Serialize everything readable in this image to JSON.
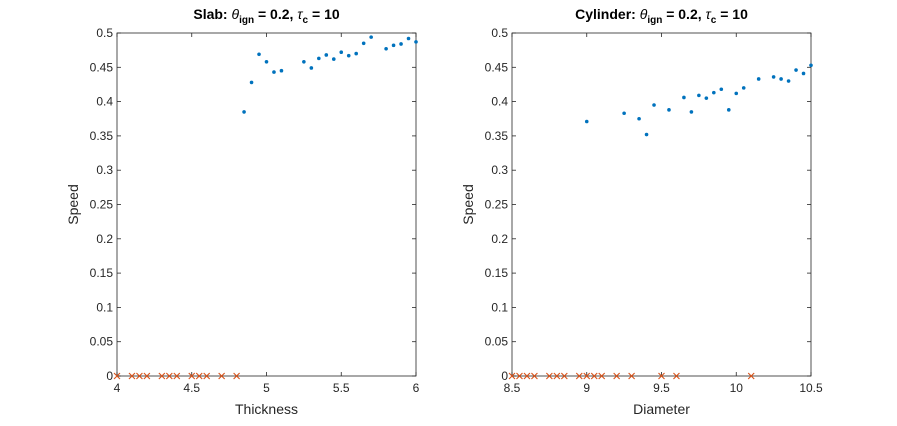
{
  "chart_data": [
    {
      "type": "scatter",
      "title": "Slab: θ_ign = 0.2, τ_c = 10",
      "title_parts": {
        "prefix": "Slab: ",
        "theta": "θ",
        "theta_sub": "ign",
        "mid": " = 0.2, ",
        "tau": "τ",
        "tau_sub": "c",
        "suffix": " = 10"
      },
      "xlabel": "Thickness",
      "ylabel": "Speed",
      "xlim": [
        4,
        6
      ],
      "ylim": [
        0,
        0.5
      ],
      "xticks": [
        "4",
        "4.5",
        "5",
        "5.5",
        "6"
      ],
      "xtick_values": [
        4,
        4.5,
        5,
        5.5,
        6
      ],
      "yticks": [
        "0",
        "0.05",
        "0.1",
        "0.15",
        "0.2",
        "0.25",
        "0.3",
        "0.35",
        "0.4",
        "0.45",
        "0.5"
      ],
      "ytick_values": [
        0,
        0.05,
        0.1,
        0.15,
        0.2,
        0.25,
        0.3,
        0.35,
        0.4,
        0.45,
        0.5
      ],
      "grid": false,
      "series": [
        {
          "marker": "dot",
          "color": "#0072BD",
          "x": [
            4.85,
            4.9,
            4.95,
            5.0,
            5.05,
            5.1,
            5.25,
            5.3,
            5.35,
            5.4,
            5.45,
            5.5,
            5.55,
            5.6,
            5.65,
            5.7,
            5.8,
            5.85,
            5.9,
            5.95,
            6.0
          ],
          "y": [
            0.385,
            0.428,
            0.469,
            0.458,
            0.443,
            0.445,
            0.458,
            0.449,
            0.463,
            0.468,
            0.462,
            0.472,
            0.467,
            0.47,
            0.485,
            0.494,
            0.477,
            0.482,
            0.484,
            0.492,
            0.487
          ]
        },
        {
          "marker": "x",
          "color": "#D95319",
          "x": [
            4.0,
            4.1,
            4.15,
            4.2,
            4.3,
            4.35,
            4.4,
            4.5,
            4.55,
            4.6,
            4.7,
            4.8
          ],
          "y": [
            0,
            0,
            0,
            0,
            0,
            0,
            0,
            0,
            0,
            0,
            0,
            0
          ]
        }
      ]
    },
    {
      "type": "scatter",
      "title": "Cylinder: θ_ign = 0.2, τ_c = 10",
      "title_parts": {
        "prefix": "Cylinder: ",
        "theta": "θ",
        "theta_sub": "ign",
        "mid": " = 0.2, ",
        "tau": "τ",
        "tau_sub": "c",
        "suffix": " = 10"
      },
      "xlabel": "Diameter",
      "ylabel": "Speed",
      "xlim": [
        8.5,
        10.5
      ],
      "ylim": [
        0,
        0.5
      ],
      "xticks": [
        "8.5",
        "9",
        "9.5",
        "10",
        "10.5"
      ],
      "xtick_values": [
        8.5,
        9,
        9.5,
        10,
        10.5
      ],
      "yticks": [
        "0",
        "0.05",
        "0.1",
        "0.15",
        "0.2",
        "0.25",
        "0.3",
        "0.35",
        "0.4",
        "0.45",
        "0.5"
      ],
      "ytick_values": [
        0,
        0.05,
        0.1,
        0.15,
        0.2,
        0.25,
        0.3,
        0.35,
        0.4,
        0.45,
        0.5
      ],
      "grid": false,
      "series": [
        {
          "marker": "dot",
          "color": "#0072BD",
          "x": [
            9.0,
            9.25,
            9.35,
            9.4,
            9.45,
            9.55,
            9.65,
            9.7,
            9.75,
            9.8,
            9.85,
            9.9,
            9.95,
            10.0,
            10.05,
            10.15,
            10.25,
            10.3,
            10.35,
            10.4,
            10.45,
            10.5
          ],
          "y": [
            0.371,
            0.383,
            0.375,
            0.352,
            0.395,
            0.388,
            0.406,
            0.385,
            0.409,
            0.405,
            0.413,
            0.418,
            0.388,
            0.412,
            0.42,
            0.433,
            0.436,
            0.433,
            0.43,
            0.446,
            0.441,
            0.453
          ]
        },
        {
          "marker": "x",
          "color": "#D95319",
          "x": [
            8.5,
            8.55,
            8.6,
            8.65,
            8.75,
            8.8,
            8.85,
            8.95,
            9.0,
            9.05,
            9.1,
            9.2,
            9.3,
            9.5,
            9.6,
            10.1
          ],
          "y": [
            0,
            0,
            0,
            0,
            0,
            0,
            0,
            0,
            0,
            0,
            0,
            0,
            0,
            0,
            0,
            0
          ]
        }
      ]
    }
  ]
}
